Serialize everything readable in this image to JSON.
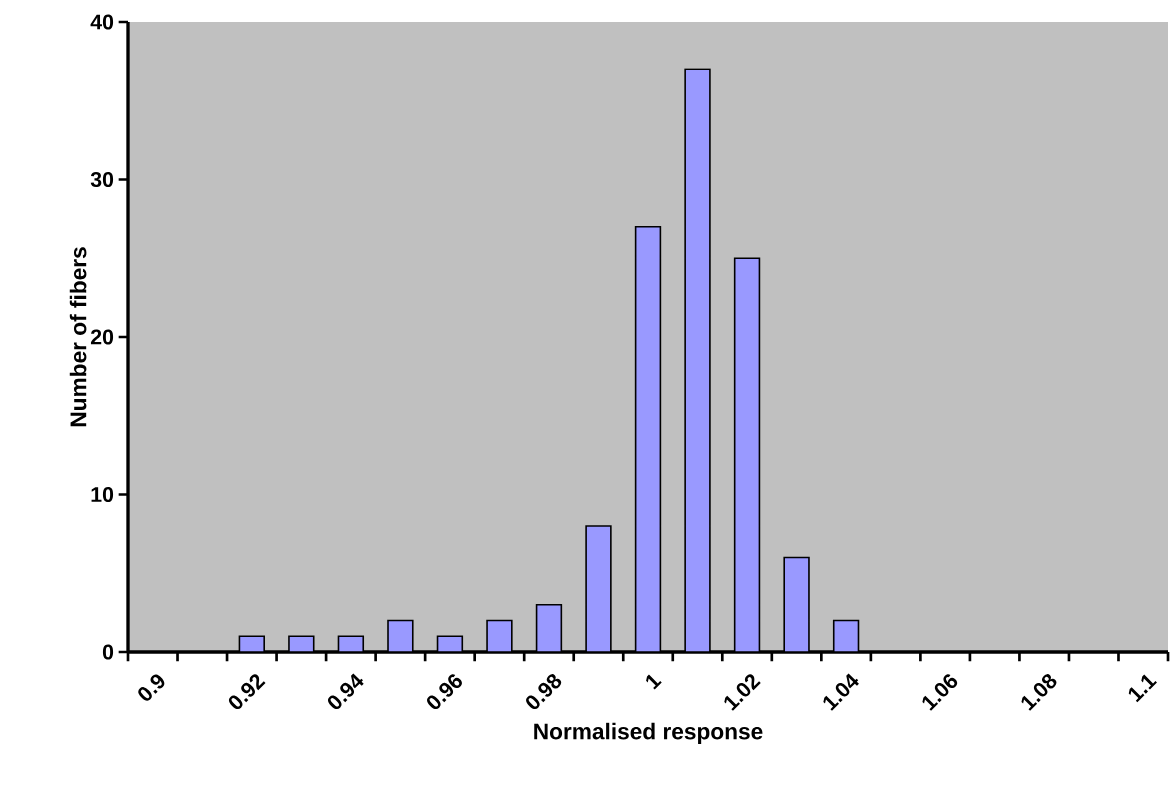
{
  "chart_data": {
    "type": "bar",
    "xlabel": "Normalised response",
    "ylabel": "Number of fibers",
    "categories": [
      "0.9",
      null,
      "0.92",
      null,
      "0.94",
      null,
      "0.96",
      null,
      "0.98",
      null,
      "1",
      null,
      "1.02",
      null,
      "1.04",
      null,
      "1.06",
      null,
      "1.08",
      null,
      "1.1"
    ],
    "values": [
      0,
      0,
      1,
      1,
      1,
      2,
      1,
      2,
      3,
      8,
      27,
      37,
      25,
      6,
      2,
      0,
      0,
      0,
      0,
      0,
      0
    ],
    "color": "#9999ff",
    "ylim": [
      0,
      40
    ],
    "yticks": [
      0,
      10,
      20,
      30,
      40
    ]
  }
}
